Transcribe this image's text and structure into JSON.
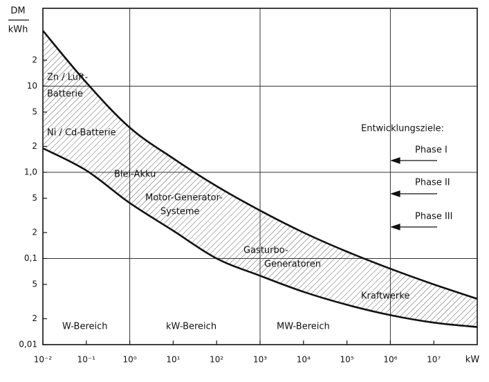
{
  "chart_data": {
    "type": "range_area",
    "y_label_top": "DM",
    "y_label_bottom": "kWh",
    "x_unit": "kW",
    "xscale": "log",
    "yscale": "log",
    "xlim": [
      0.01,
      100000000
    ],
    "ylim": [
      0.01,
      80
    ],
    "xticks": [
      {
        "value": 0.01,
        "label": "10⁻²"
      },
      {
        "value": 0.1,
        "label": "10⁻¹"
      },
      {
        "value": 1,
        "label": "10⁰"
      },
      {
        "value": 10,
        "label": "10¹"
      },
      {
        "value": 100,
        "label": "10²"
      },
      {
        "value": 1000,
        "label": "10³"
      },
      {
        "value": 10000,
        "label": "10⁴"
      },
      {
        "value": 100000,
        "label": "10⁵"
      },
      {
        "value": 1000000,
        "label": "10⁶"
      },
      {
        "value": 10000000,
        "label": "10⁷"
      }
    ],
    "yticks": [
      {
        "value": 0.01,
        "label": "0,01"
      },
      {
        "value": 0.02,
        "label": "2"
      },
      {
        "value": 0.05,
        "label": "5"
      },
      {
        "value": 0.1,
        "label": "0,1"
      },
      {
        "value": 0.2,
        "label": "2"
      },
      {
        "value": 0.5,
        "label": "5"
      },
      {
        "value": 1,
        "label": "1,0"
      },
      {
        "value": 2,
        "label": "2"
      },
      {
        "value": 5,
        "label": "5"
      },
      10,
      {
        "value": 20,
        "label": "2"
      }
    ],
    "xgrid": [
      1,
      1000,
      1000000
    ],
    "ygrid": [
      0.1,
      1,
      10
    ],
    "x": [
      0.01,
      0.1,
      1,
      10,
      100,
      1000,
      10000,
      100000,
      1000000,
      10000000,
      100000000
    ],
    "series": [
      {
        "name": "upper",
        "color": "#111",
        "values": [
          44,
          11,
          3.3,
          1.45,
          0.69,
          0.36,
          0.2,
          0.12,
          0.076,
          0.05,
          0.034
        ]
      },
      {
        "name": "lower",
        "color": "#111",
        "values": [
          1.9,
          1.05,
          0.44,
          0.21,
          0.1,
          0.063,
          0.041,
          0.029,
          0.022,
          0.018,
          0.016
        ]
      }
    ],
    "annotations": [
      "Zn / Luft-",
      "Batterie",
      "Ni / Cd-Batterie",
      "Blei-Akku",
      "Motor-Generator-",
      "Systeme",
      "Gasturbo-",
      "Generatoren",
      "Kraftwerke",
      "Entwicklungsziele:",
      "Phase I",
      "Phase II",
      "Phase III",
      "W-Bereich",
      "kW-Bereich",
      "MW-Bereich"
    ]
  }
}
